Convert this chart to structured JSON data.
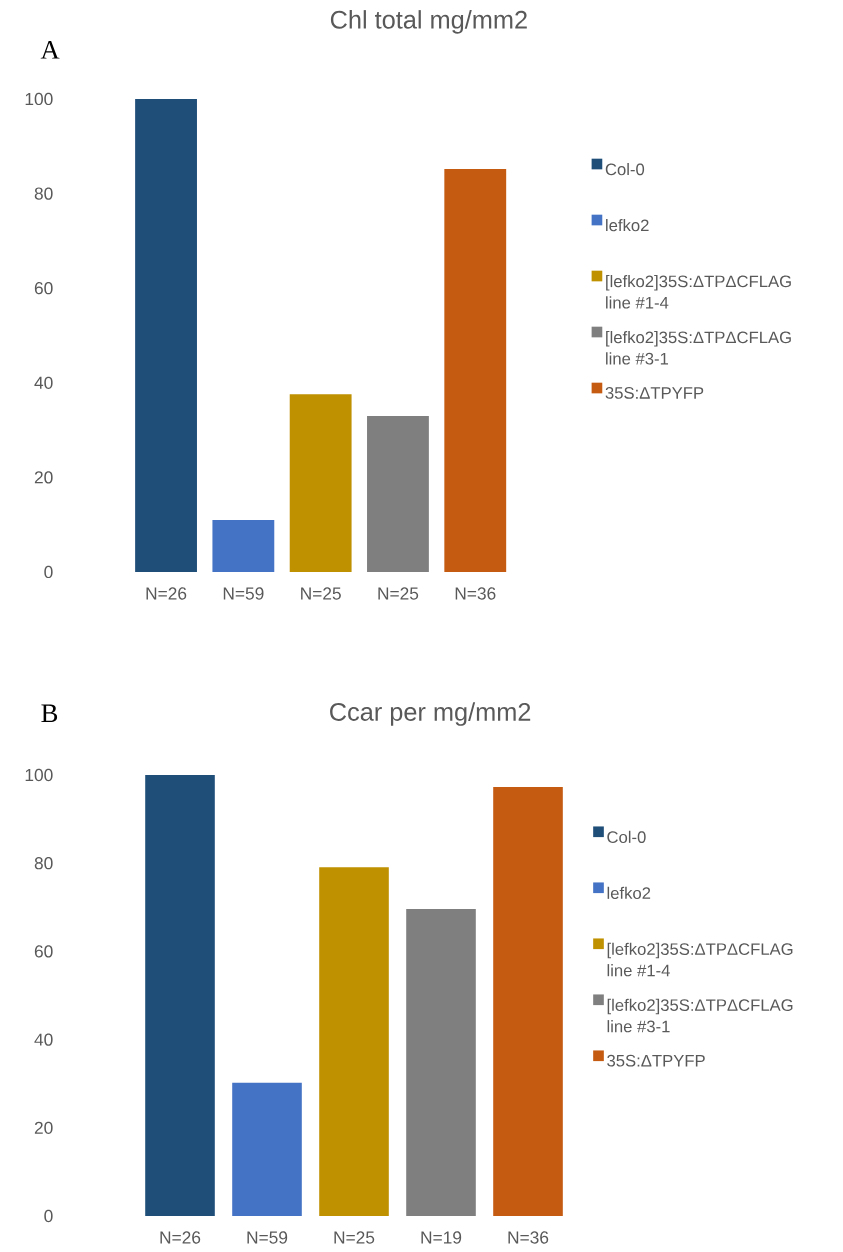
{
  "chart_data": [
    {
      "type": "bar",
      "title": "Chl total mg/mm2",
      "annotations": [
        "A"
      ],
      "categories": [
        "N=26",
        "N=59",
        "N=25",
        "N=25",
        "N=36"
      ],
      "series": [
        {
          "name": "Col-0",
          "color": "#1f4e79",
          "values": [
            100,
            null,
            null,
            null,
            null
          ]
        },
        {
          "name": "lefko2",
          "color": "#4472c4",
          "values": [
            null,
            11,
            null,
            null,
            null
          ]
        },
        {
          "name": "[lefko2]35S:ΔTPΔCFLAG line #1-4",
          "color": "#bf9000",
          "values": [
            null,
            null,
            37.6,
            null,
            null
          ]
        },
        {
          "name": "[lefko2]35S:ΔTPΔCFLAG line #3-1",
          "color": "#7f7f7f",
          "values": [
            null,
            null,
            null,
            33,
            null
          ]
        },
        {
          "name": "35S:ΔTPYFP",
          "color": "#c55a11",
          "values": [
            null,
            null,
            null,
            null,
            85.2
          ]
        }
      ],
      "ylim": [
        0,
        100
      ],
      "yticks": [
        0,
        20,
        40,
        60,
        80,
        100
      ],
      "legend": "right"
    },
    {
      "type": "bar",
      "title": "Ccar per mg/mm2",
      "annotations": [
        "B"
      ],
      "categories": [
        "N=26",
        "N=59",
        "N=25",
        "N=19",
        "N=36"
      ],
      "series": [
        {
          "name": "Col-0",
          "color": "#1f4e79",
          "values": [
            100,
            null,
            null,
            null,
            null
          ]
        },
        {
          "name": "lefko2",
          "color": "#4472c4",
          "values": [
            null,
            30.2,
            null,
            null,
            null
          ]
        },
        {
          "name": "[lefko2]35S:ΔTPΔCFLAG line #1-4",
          "color": "#bf9000",
          "values": [
            null,
            null,
            79.1,
            null,
            null
          ]
        },
        {
          "name": "[lefko2]35S:ΔTPΔCFLAG line #3-1",
          "color": "#7f7f7f",
          "values": [
            null,
            null,
            null,
            69.6,
            null
          ]
        },
        {
          "name": "35S:ΔTPYFP",
          "color": "#c55a11",
          "values": [
            null,
            null,
            null,
            null,
            97.3
          ]
        }
      ],
      "ylim": [
        0,
        100
      ],
      "yticks": [
        0,
        20,
        40,
        60,
        80,
        100
      ],
      "legend": "right"
    }
  ]
}
